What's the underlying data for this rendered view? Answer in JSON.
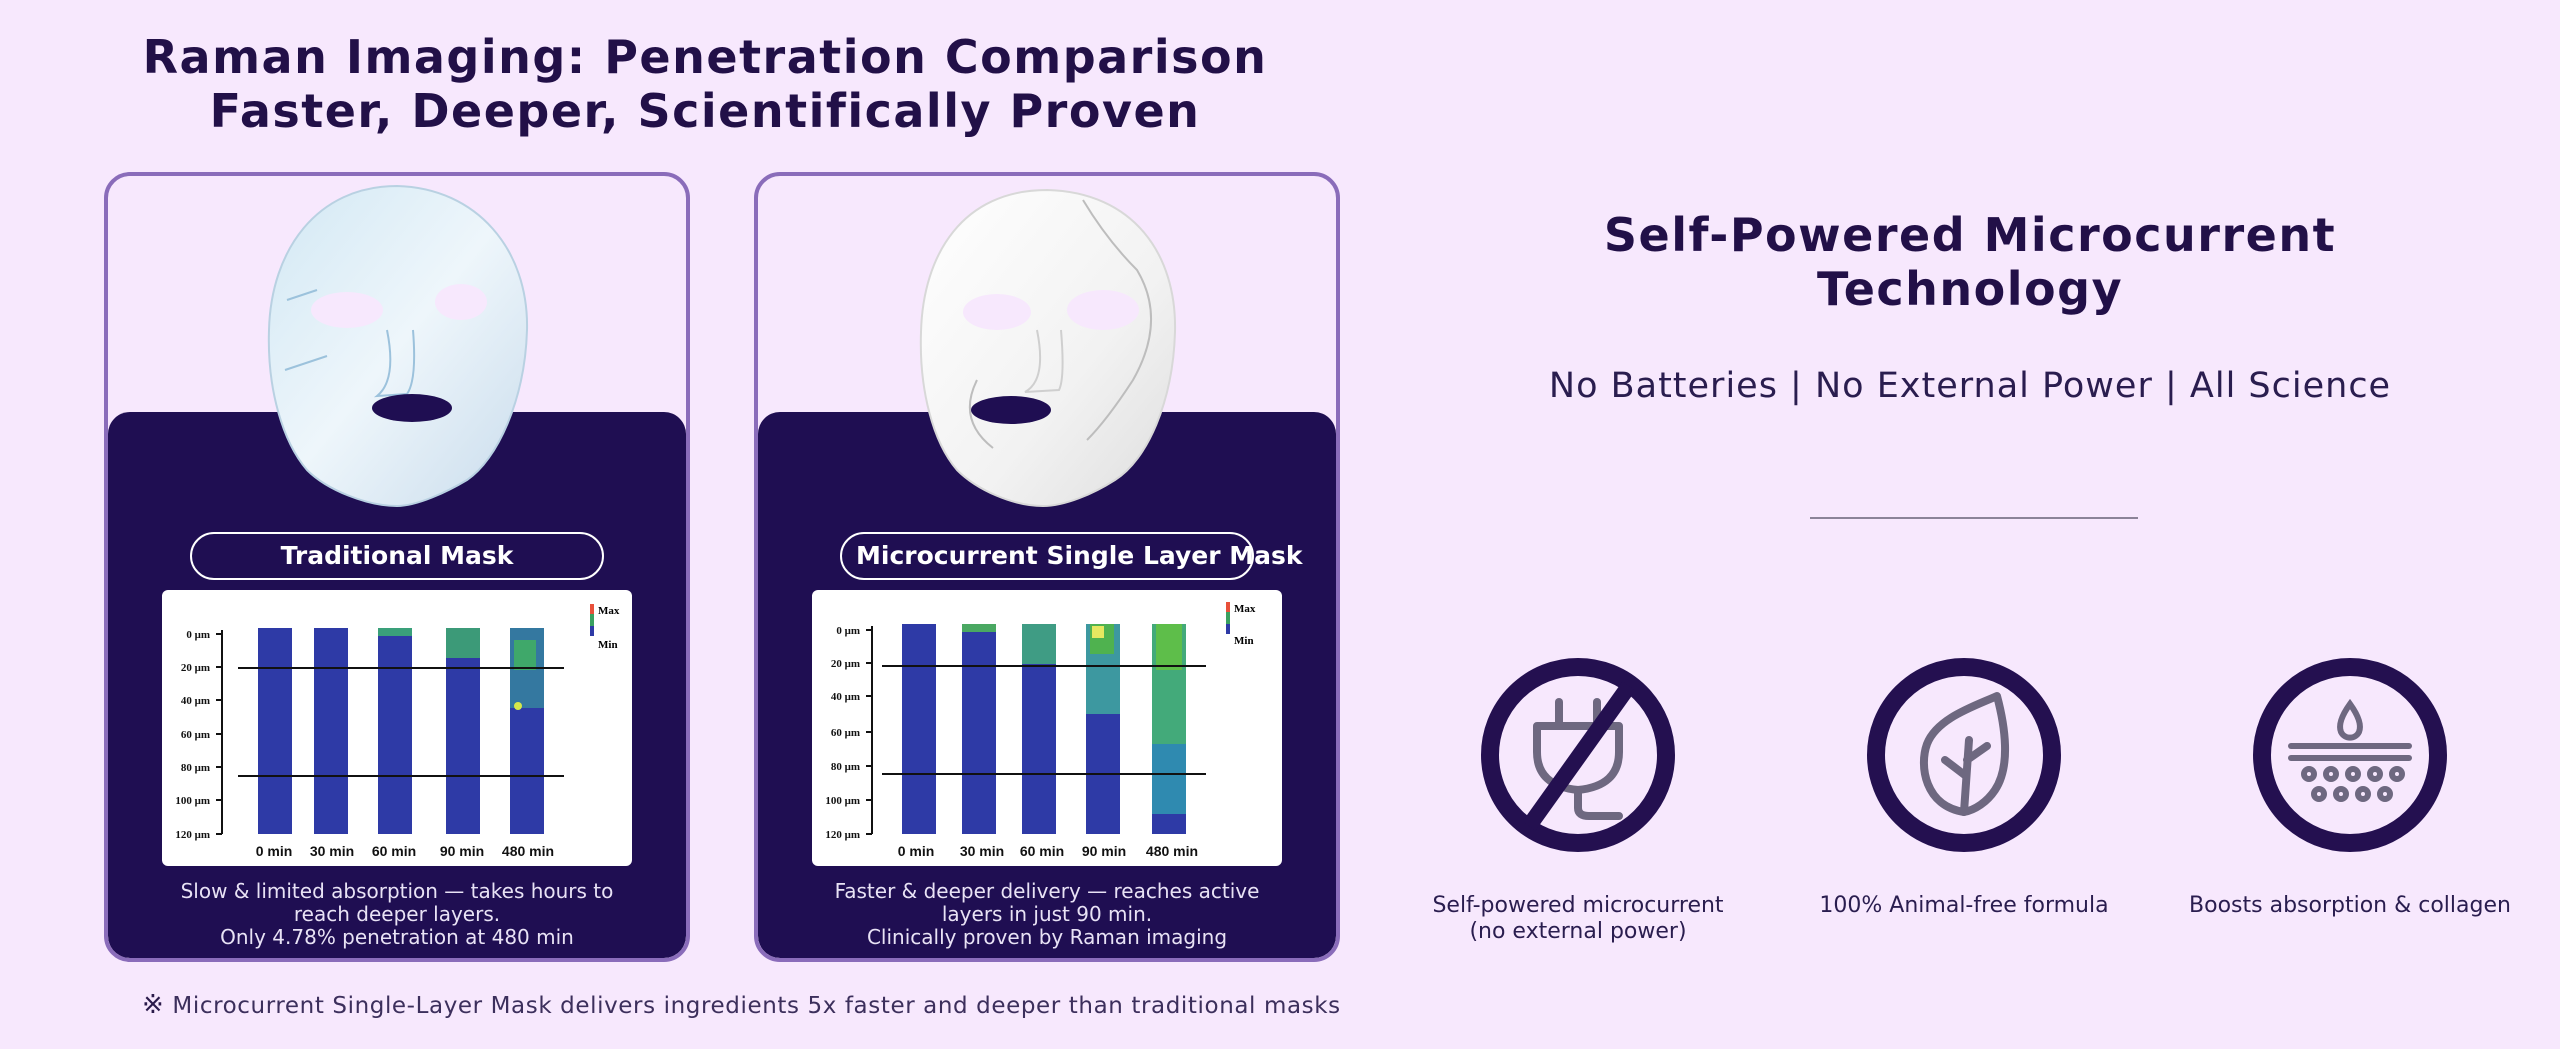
{
  "left_title": {
    "line1": "Raman Imaging: Penetration Comparison",
    "line2": "Faster, Deeper, Scientifically Proven"
  },
  "cards": [
    {
      "label": "Traditional Mask",
      "caption_line1": "Slow & limited absorption — takes hours to",
      "caption_line2": "reach deeper layers.",
      "caption_line3": "Only 4.78% penetration at 480 min",
      "chart": {
        "y_ticks": [
          "0 μm",
          "20 μm",
          "40 μm",
          "60 μm",
          "80 μm",
          "100 μm",
          "120 μm"
        ],
        "x_labels": [
          "0 min",
          "30 min",
          "60 min",
          "90  min",
          "480 min"
        ],
        "legend_max": "Max",
        "legend_min": "Min"
      }
    },
    {
      "label": "Microcurrent Single Layer Mask",
      "caption_line1": "Faster & deeper delivery — reaches active",
      "caption_line2": "layers in just 90 min.",
      "caption_line3": "Clinically proven by Raman imaging",
      "chart": {
        "y_ticks": [
          "0 μm",
          "20 μm",
          "40 μm",
          "60 μm",
          "80 μm",
          "100 μm",
          "120 μm"
        ],
        "x_labels": [
          "0 min",
          "30 min",
          "60 min",
          "90  min",
          "480 min"
        ],
        "legend_max": "Max",
        "legend_min": "Min"
      }
    }
  ],
  "footnote": {
    "symbol": "※",
    "text": "Microcurrent Single-Layer Mask delivers ingredients 5x faster and deeper than traditional masks"
  },
  "right_title": {
    "line1": "Self-Powered Microcurrent",
    "line2": "Technology"
  },
  "right_subtitle": "No Batteries | No External Power | All Science",
  "features": [
    {
      "icon": "no-plug-icon",
      "line1": "Self-powered microcurrent",
      "line2": "(no external power)"
    },
    {
      "icon": "leaf-icon",
      "line1": "100% Animal-free formula",
      "line2": ""
    },
    {
      "icon": "absorption-icon",
      "line1": "Boosts absorption & collagen",
      "line2": ""
    }
  ],
  "colors": {
    "background": "#f7e8fd",
    "dark_panel": "#1f0e52",
    "card_border": "#8a6cba",
    "heading": "#221048",
    "bar_blue": "#2e3aa6"
  }
}
